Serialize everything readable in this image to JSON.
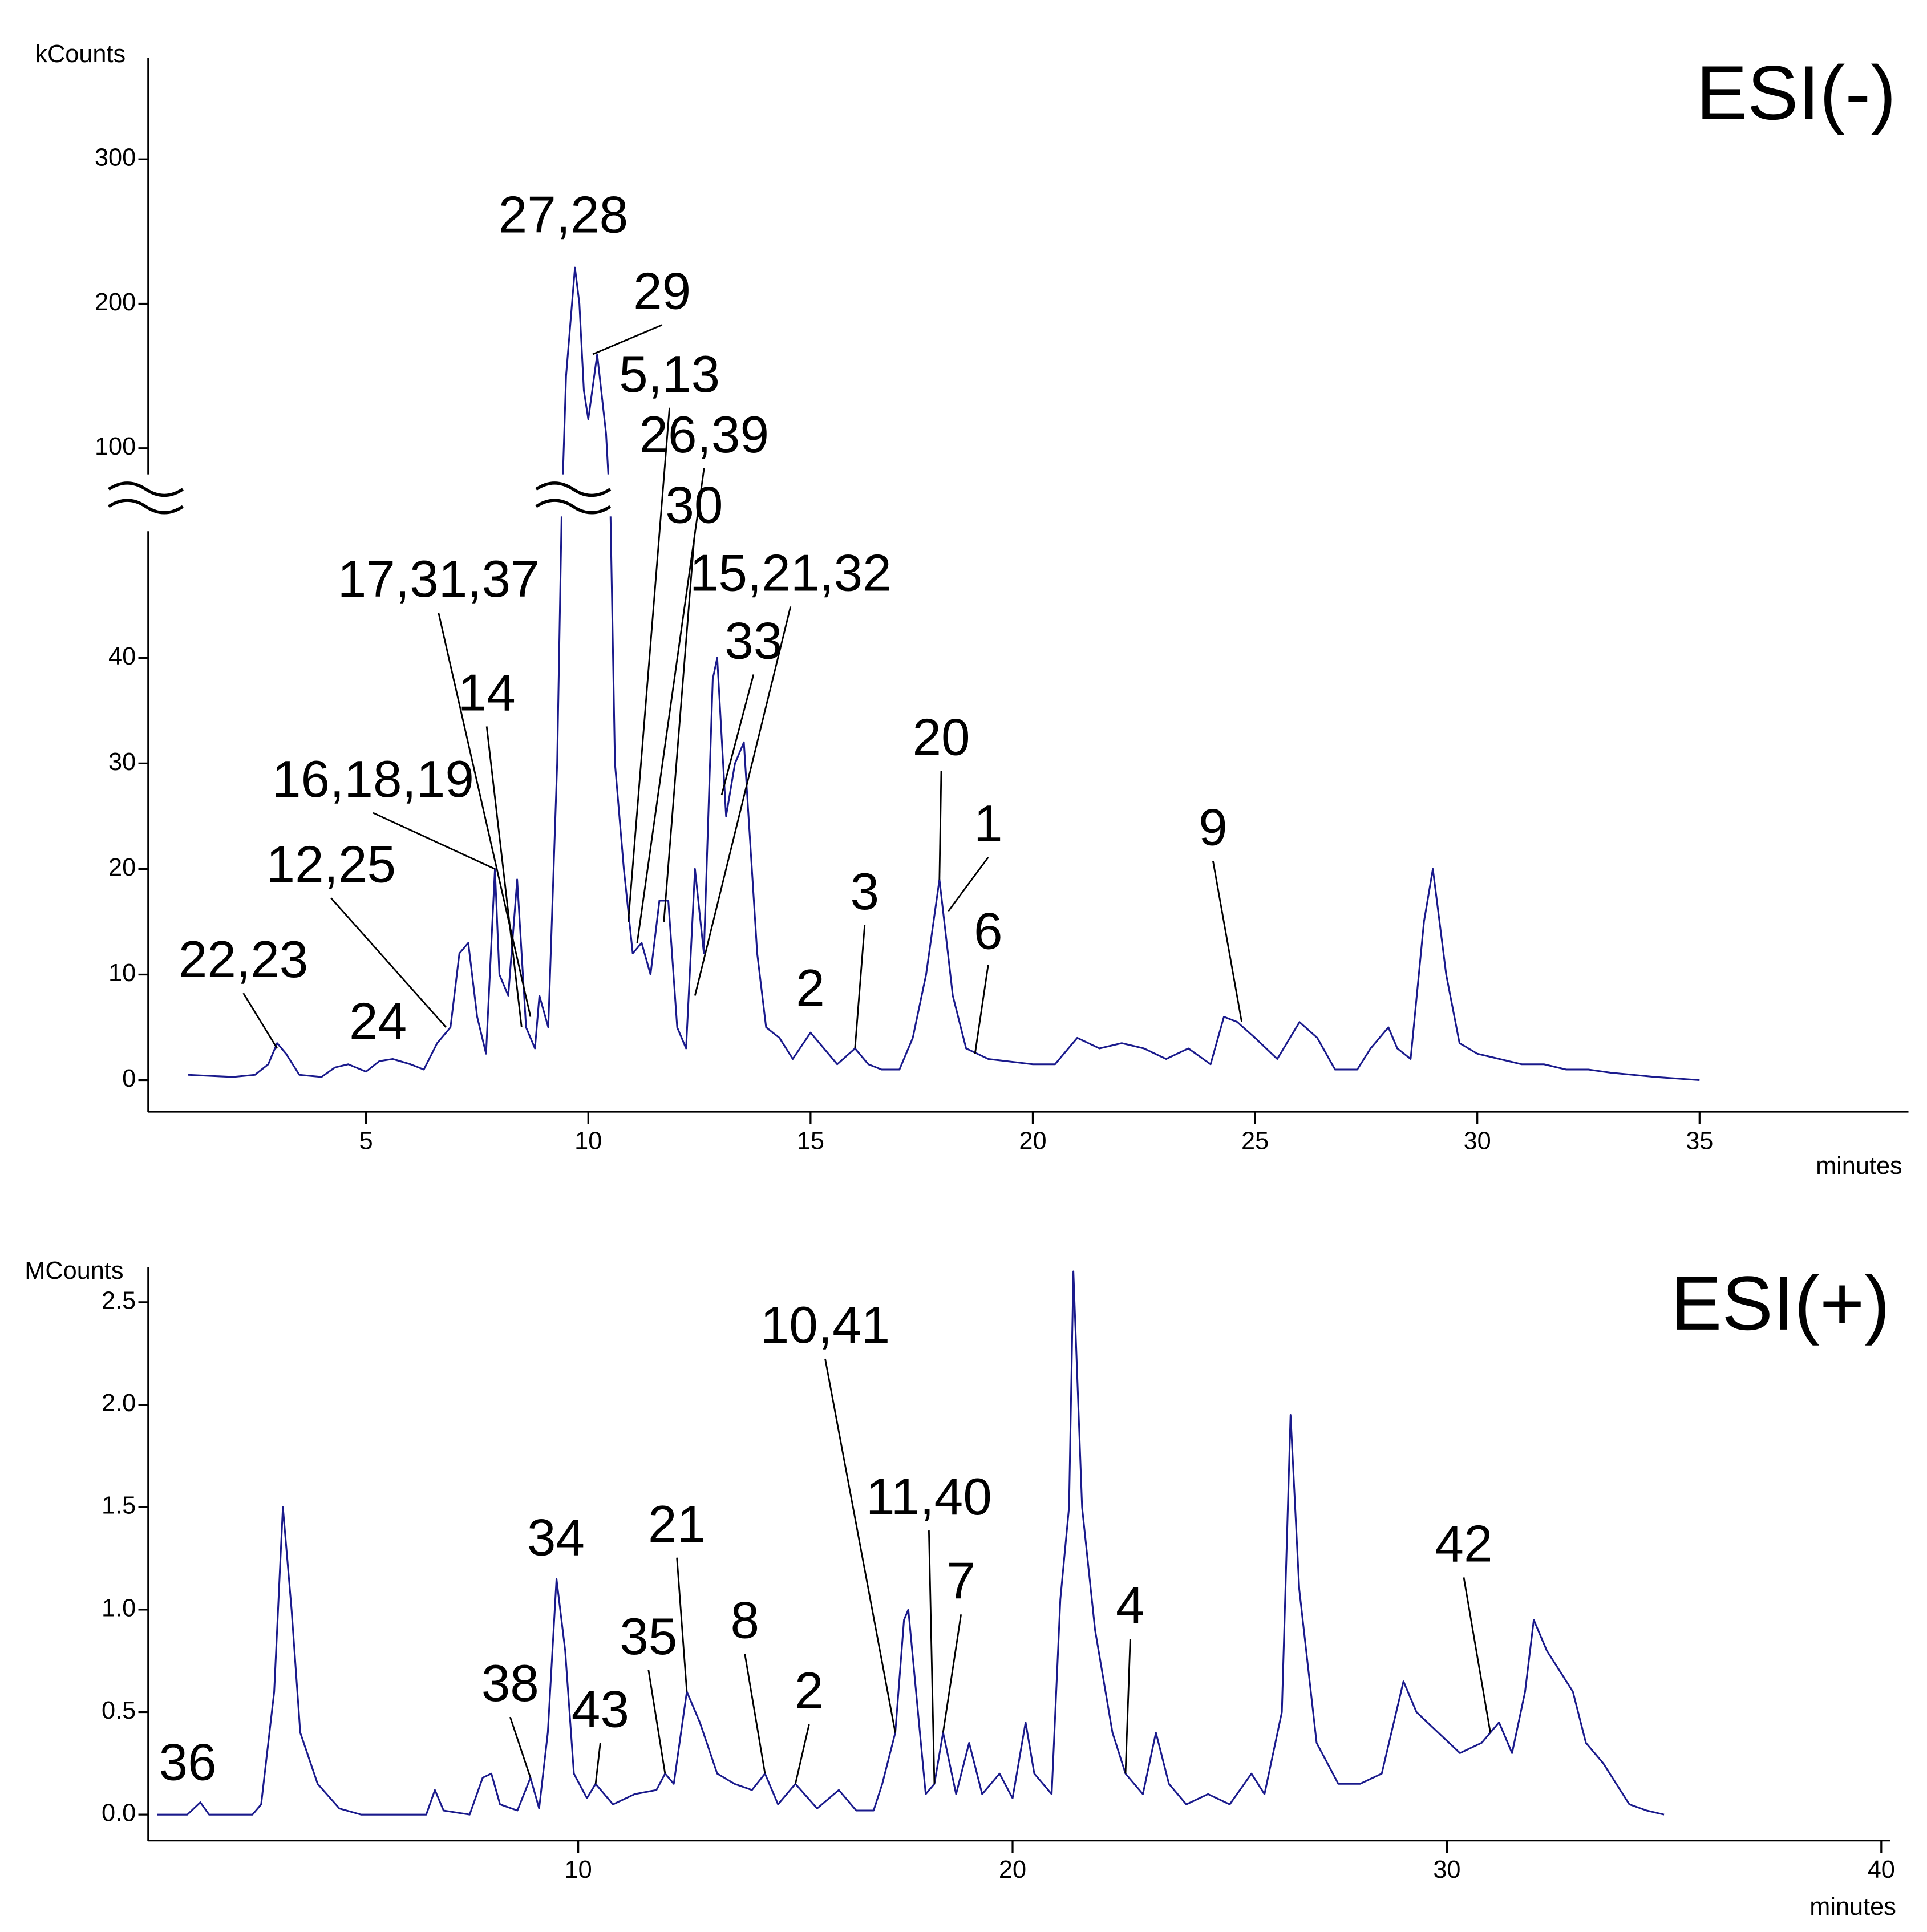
{
  "chart_data": [
    {
      "type": "line",
      "title": "ESI(-)",
      "y_label": "kCounts",
      "x_label": "minutes",
      "xlim": [
        0.1,
        39.7
      ],
      "xticks": [
        5,
        10,
        15,
        20,
        25,
        30,
        35
      ],
      "y_segments": [
        {
          "ylim": [
            -3,
            52
          ],
          "yticks": [
            0,
            10,
            20,
            30,
            40
          ]
        },
        {
          "ylim": [
            75,
            370
          ],
          "yticks": [
            100,
            200,
            300
          ]
        }
      ],
      "series": [
        {
          "color": "#1a1a8c",
          "x": [
            1.0,
            2.0,
            2.5,
            2.8,
            3.0,
            3.2,
            3.5,
            4.0,
            4.3,
            4.6,
            5.0,
            5.3,
            5.6,
            6.0,
            6.3,
            6.6,
            6.9,
            7.1,
            7.3,
            7.5,
            7.7,
            7.9,
            8.0,
            8.2,
            8.4,
            8.6,
            8.8,
            8.9,
            9.1,
            9.3,
            9.4,
            9.5,
            9.7,
            9.8,
            9.9,
            10.0,
            10.2,
            10.4,
            10.5,
            10.6,
            10.8,
            11.0,
            11.2,
            11.4,
            11.6,
            11.8,
            12.0,
            12.2,
            12.4,
            12.6,
            12.8,
            12.9,
            13.1,
            13.3,
            13.5,
            13.8,
            14.0,
            14.3,
            14.6,
            15.0,
            15.3,
            15.6,
            16.0,
            16.3,
            16.6,
            17.0,
            17.3,
            17.6,
            17.9,
            18.2,
            18.5,
            19.0,
            20.0,
            20.5,
            21.0,
            21.5,
            22.0,
            22.5,
            23.0,
            23.5,
            24.0,
            24.3,
            24.6,
            25.0,
            25.5,
            26.0,
            26.4,
            26.8,
            27.3,
            27.6,
            28.0,
            28.2,
            28.5,
            28.8,
            29.0,
            29.3,
            29.6,
            30.0,
            30.5,
            31.0,
            31.5,
            32.0,
            32.5,
            33.0,
            34.0,
            35.0
          ],
          "values": [
            0.5,
            0.3,
            0.5,
            1.5,
            3.5,
            2.5,
            0.5,
            0.3,
            1.2,
            1.5,
            0.8,
            1.8,
            2.0,
            1.5,
            1.0,
            3.5,
            5.0,
            12,
            13,
            6,
            2.5,
            20,
            10,
            8,
            19,
            5,
            3,
            8,
            5,
            30,
            60,
            150,
            225,
            200,
            140,
            120,
            165,
            110,
            60,
            30,
            20,
            12,
            13,
            10,
            17,
            17,
            5,
            3,
            20,
            12,
            38,
            40,
            25,
            30,
            32,
            12,
            5,
            4,
            2,
            4.5,
            3,
            1.5,
            3,
            1.5,
            1,
            1,
            4,
            10,
            19,
            8,
            3,
            2,
            1.5,
            1.5,
            4,
            3,
            3.5,
            3,
            2,
            3,
            1.5,
            6,
            5.5,
            4,
            2,
            5.5,
            4,
            1,
            1,
            3,
            5,
            3,
            2,
            15,
            20,
            10,
            3.5,
            2.5,
            2,
            1.5,
            1.5,
            1,
            1,
            0.7,
            0.3,
            0
          ]
        }
      ],
      "annotations": [
        {
          "text": "22,23",
          "x": 3.0,
          "y": 3
        },
        {
          "text": "24"
        },
        {
          "text": "12,25",
          "x": 6.8,
          "y": 5
        },
        {
          "text": "16,18,19",
          "x": 7.9,
          "y": 20
        },
        {
          "text": "17,31,37",
          "x": 8.7,
          "y": 6
        },
        {
          "text": "14",
          "x": 8.5,
          "y": 5
        },
        {
          "text": "27,28"
        },
        {
          "text": "29",
          "x": 10.1,
          "y": 165
        },
        {
          "text": "5,13",
          "x": 10.9,
          "y": 15
        },
        {
          "text": "26,39",
          "x": 11.1,
          "y": 13
        },
        {
          "text": "30",
          "x": 11.7,
          "y": 15
        },
        {
          "text": "15,21,32",
          "x": 12.4,
          "y": 8
        },
        {
          "text": "33",
          "x": 13.0,
          "y": 27
        },
        {
          "text": "20",
          "x": 17.9,
          "y": 19
        },
        {
          "text": "1",
          "x": 18.1,
          "y": 16
        },
        {
          "text": "3",
          "x": 16.0,
          "y": 3
        },
        {
          "text": "2"
        },
        {
          "text": "6",
          "x": 18.7,
          "y": 2.5
        },
        {
          "text": "9",
          "x": 24.7,
          "y": 5.5
        }
      ]
    },
    {
      "type": "line",
      "title": "ESI(+)",
      "y_label": "MCounts",
      "x_label": "minutes",
      "xlim": [
        0.1,
        40.2
      ],
      "xticks": [
        10,
        20,
        30,
        40
      ],
      "ylim": [
        -0.13,
        2.67
      ],
      "yticks": [
        {
          "value": 0,
          "label": "0.0"
        },
        0.5,
        {
          "value": 1,
          "label": "1.0"
        },
        1.5,
        {
          "value": 2,
          "label": "2.0"
        },
        2.5
      ],
      "series": [
        {
          "color": "#1a1a8c",
          "x": [
            0.3,
            1.0,
            1.3,
            1.5,
            2.5,
            2.7,
            3.0,
            3.2,
            3.4,
            3.6,
            4.0,
            4.5,
            5.0,
            6.5,
            6.7,
            6.9,
            7.5,
            7.8,
            8.0,
            8.2,
            8.6,
            8.9,
            9.1,
            9.3,
            9.5,
            9.7,
            9.9,
            10.2,
            10.4,
            10.8,
            11.3,
            11.8,
            12.0,
            12.2,
            12.5,
            12.8,
            13.2,
            13.6,
            14.0,
            14.3,
            14.6,
            15.0,
            15.5,
            16.0,
            16.4,
            16.8,
            17.0,
            17.3,
            17.5,
            17.6,
            17.8,
            18.0,
            18.2,
            18.4,
            18.7,
            19.0,
            19.3,
            19.7,
            20.0,
            20.3,
            20.5,
            20.9,
            21.1,
            21.3,
            21.4,
            21.6,
            21.9,
            22.3,
            22.6,
            23.0,
            23.3,
            23.6,
            24.0,
            24.5,
            25.0,
            25.5,
            25.8,
            26.2,
            26.4,
            26.6,
            27.0,
            27.5,
            28.0,
            28.5,
            29.0,
            29.3,
            29.8,
            30.3,
            30.8,
            31.2,
            31.5,
            31.8,
            32.0,
            32.3,
            32.6,
            32.9,
            33.2,
            33.6,
            33.9,
            34.2,
            34.6,
            35.0
          ],
          "values": [
            0.0,
            0.0,
            0.06,
            0.0,
            0.0,
            0.05,
            0.6,
            1.5,
            1.0,
            0.4,
            0.15,
            0.03,
            0.0,
            0.0,
            0.12,
            0.02,
            0.0,
            0.18,
            0.2,
            0.05,
            0.02,
            0.18,
            0.03,
            0.4,
            1.15,
            0.8,
            0.2,
            0.08,
            0.15,
            0.05,
            0.1,
            0.12,
            0.2,
            0.15,
            0.6,
            0.45,
            0.2,
            0.15,
            0.12,
            0.2,
            0.05,
            0.15,
            0.03,
            0.12,
            0.02,
            0.02,
            0.15,
            0.4,
            0.95,
            1.0,
            0.55,
            0.1,
            0.15,
            0.4,
            0.1,
            0.35,
            0.1,
            0.2,
            0.08,
            0.45,
            0.2,
            0.1,
            1.05,
            1.5,
            2.65,
            1.5,
            0.9,
            0.4,
            0.2,
            0.1,
            0.4,
            0.15,
            0.05,
            0.1,
            0.05,
            0.2,
            0.1,
            0.5,
            1.95,
            1.1,
            0.35,
            0.15,
            0.15,
            0.2,
            0.65,
            0.5,
            0.4,
            0.3,
            0.35,
            0.45,
            0.3,
            0.6,
            0.95,
            0.8,
            0.7,
            0.6,
            0.35,
            0.25,
            0.15,
            0.05,
            0.02,
            0.0
          ]
        }
      ],
      "annotations": [
        {
          "text": "36"
        },
        {
          "text": "38",
          "x": 8.9,
          "y": 0.18
        },
        {
          "text": "34"
        },
        {
          "text": "43",
          "x": 10.4,
          "y": 0.15
        },
        {
          "text": "35",
          "x": 12.0,
          "y": 0.2
        },
        {
          "text": "21",
          "x": 12.5,
          "y": 0.6
        },
        {
          "text": "8",
          "x": 14.3,
          "y": 0.2
        },
        {
          "text": "2",
          "x": 15.0,
          "y": 0.15
        },
        {
          "text": "10,41",
          "x": 17.3,
          "y": 0.4
        },
        {
          "text": "11,40",
          "x": 18.2,
          "y": 0.15
        },
        {
          "text": "7",
          "x": 18.4,
          "y": 0.4
        },
        {
          "text": "4",
          "x": 22.6,
          "y": 0.2
        },
        {
          "text": "42",
          "x": 31.0,
          "y": 0.4
        }
      ]
    }
  ]
}
